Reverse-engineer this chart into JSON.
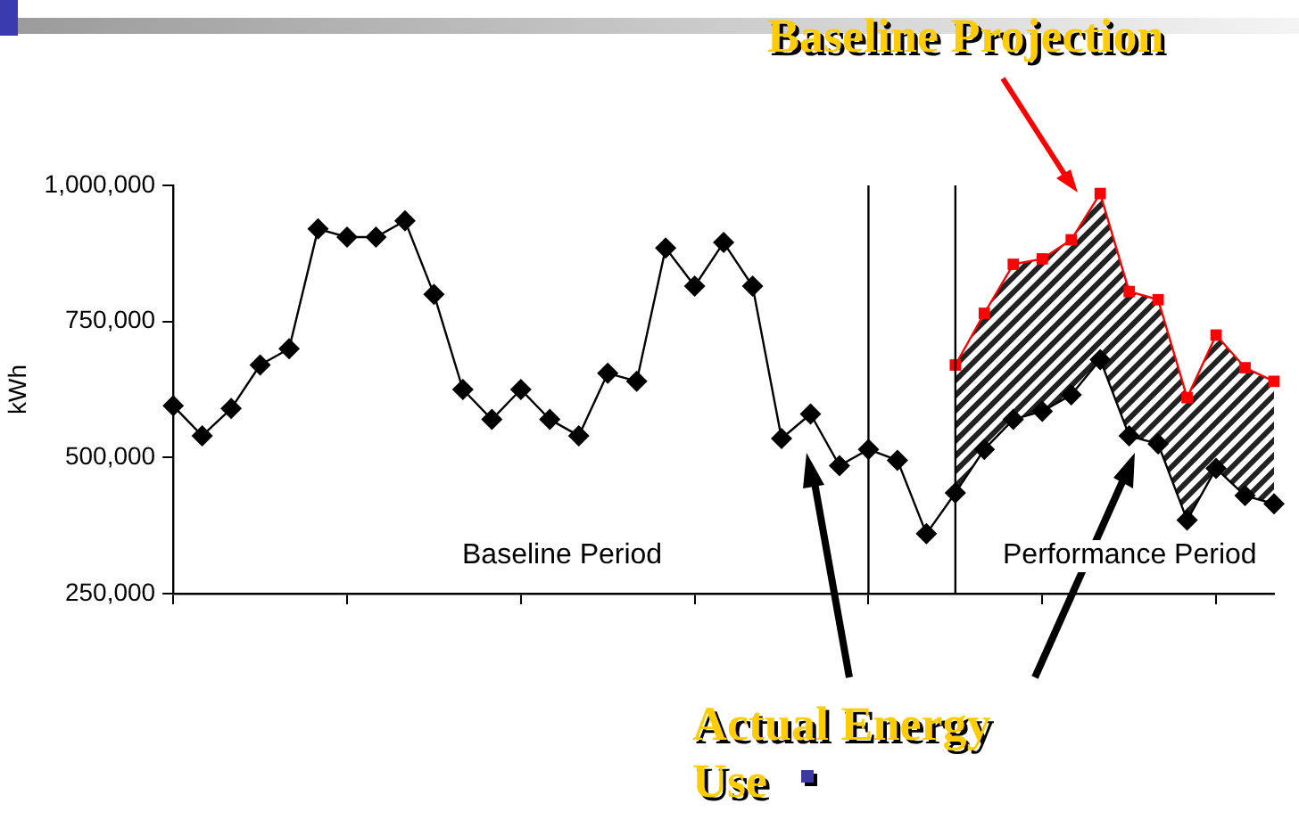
{
  "chart_data": {
    "type": "line",
    "ylabel": "kWh",
    "categories": [
      null,
      null,
      null,
      null,
      null,
      null,
      null,
      null,
      null,
      null,
      null,
      null,
      null,
      null,
      null,
      null,
      null,
      null,
      null,
      null,
      null,
      null,
      null,
      null,
      null,
      null,
      null,
      null,
      null,
      null,
      null,
      null,
      null,
      null,
      null,
      null,
      null,
      null,
      null
    ],
    "ylim": [
      250000,
      1000000
    ],
    "yticks": [
      {
        "value": 250000,
        "label": "250,000"
      },
      {
        "value": 500000,
        "label": "500,000"
      },
      {
        "value": 750000,
        "label": "750,000"
      },
      {
        "value": 1000000,
        "label": "1,000,000"
      }
    ],
    "tick_labels": "y",
    "grid": false,
    "legend": false,
    "line_style": "solid",
    "series": [
      {
        "color": "#000000",
        "marker": "diamond",
        "values": [
          595000,
          540000,
          590000,
          670000,
          700000,
          920000,
          905000,
          905000,
          935000,
          800000,
          625000,
          570000,
          625000,
          570000,
          540000,
          655000,
          640000,
          885000,
          815000,
          895000,
          815000,
          535000,
          580000,
          485000,
          515000,
          495000,
          360000,
          435000,
          515000,
          570000,
          585000,
          615000,
          680000,
          540000,
          525000,
          385000,
          480000,
          430000,
          415000
        ]
      },
      {
        "color": "#ff0000",
        "marker": "square",
        "values": [
          null,
          null,
          null,
          null,
          null,
          null,
          null,
          null,
          null,
          null,
          null,
          null,
          null,
          null,
          null,
          null,
          null,
          null,
          null,
          null,
          null,
          null,
          null,
          null,
          null,
          null,
          null,
          670000,
          765000,
          855000,
          865000,
          900000,
          985000,
          805000,
          790000,
          610000,
          725000,
          665000,
          640000
        ]
      }
    ],
    "annotations": [
      "Baseline Period",
      "Performance Period",
      "Baseline Projection",
      "Actual Energy Use"
    ]
  }
}
